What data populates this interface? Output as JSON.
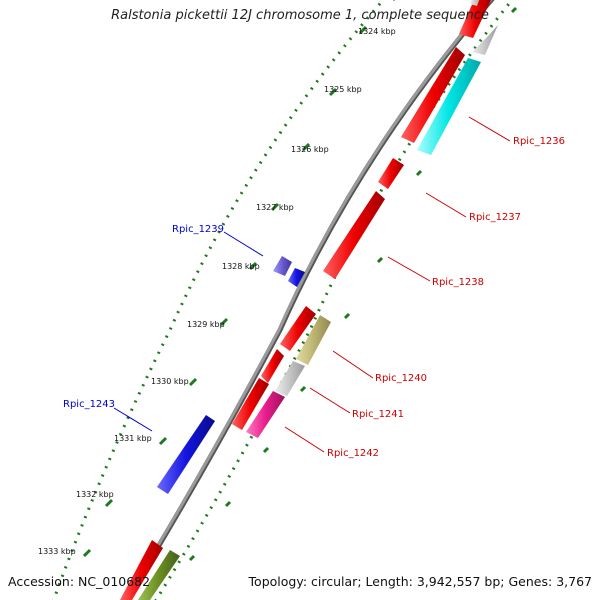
{
  "title": "Ralstonia pickettii 12J chromosome 1, complete sequence",
  "footer": {
    "accession_label": "Accession:",
    "accession": "NC_010682",
    "topology_label": "Topology:",
    "topology": "circular",
    "length_label": "Length:",
    "length": "3,942,557 bp",
    "genes_label": "Genes:",
    "genes": "3,767"
  },
  "colors": {
    "backbone": "#8a8a8a",
    "forward_cds": "#e00000",
    "reverse_cds": "#1a1adf",
    "cyan_feature": "#00e5e5",
    "grey_feature": "#c0c0c0",
    "olive_feature": "#b8b06a",
    "magenta_feature": "#e0208a",
    "dark_olive_feature": "#6b8e23",
    "tick_green": "#1f7a1f",
    "forward_label": "#cc0000",
    "reverse_label": "#0000cc"
  },
  "scale": {
    "unit": "kbp",
    "ticks": [
      "1324 kbp",
      "1325 kbp",
      "1326 kbp",
      "1327 kbp",
      "1328 kbp",
      "1329 kbp",
      "1330 kbp",
      "1331 kbp",
      "1332 kbp",
      "1333 kbp"
    ]
  },
  "gene_labels": [
    {
      "id": "Rpic_1236",
      "strand": "forward"
    },
    {
      "id": "Rpic_1237",
      "strand": "forward"
    },
    {
      "id": "Rpic_1238",
      "strand": "forward"
    },
    {
      "id": "Rpic_1239",
      "strand": "reverse"
    },
    {
      "id": "Rpic_1240",
      "strand": "forward"
    },
    {
      "id": "Rpic_1241",
      "strand": "forward"
    },
    {
      "id": "Rpic_1242",
      "strand": "forward"
    },
    {
      "id": "Rpic_1243",
      "strand": "reverse"
    }
  ]
}
